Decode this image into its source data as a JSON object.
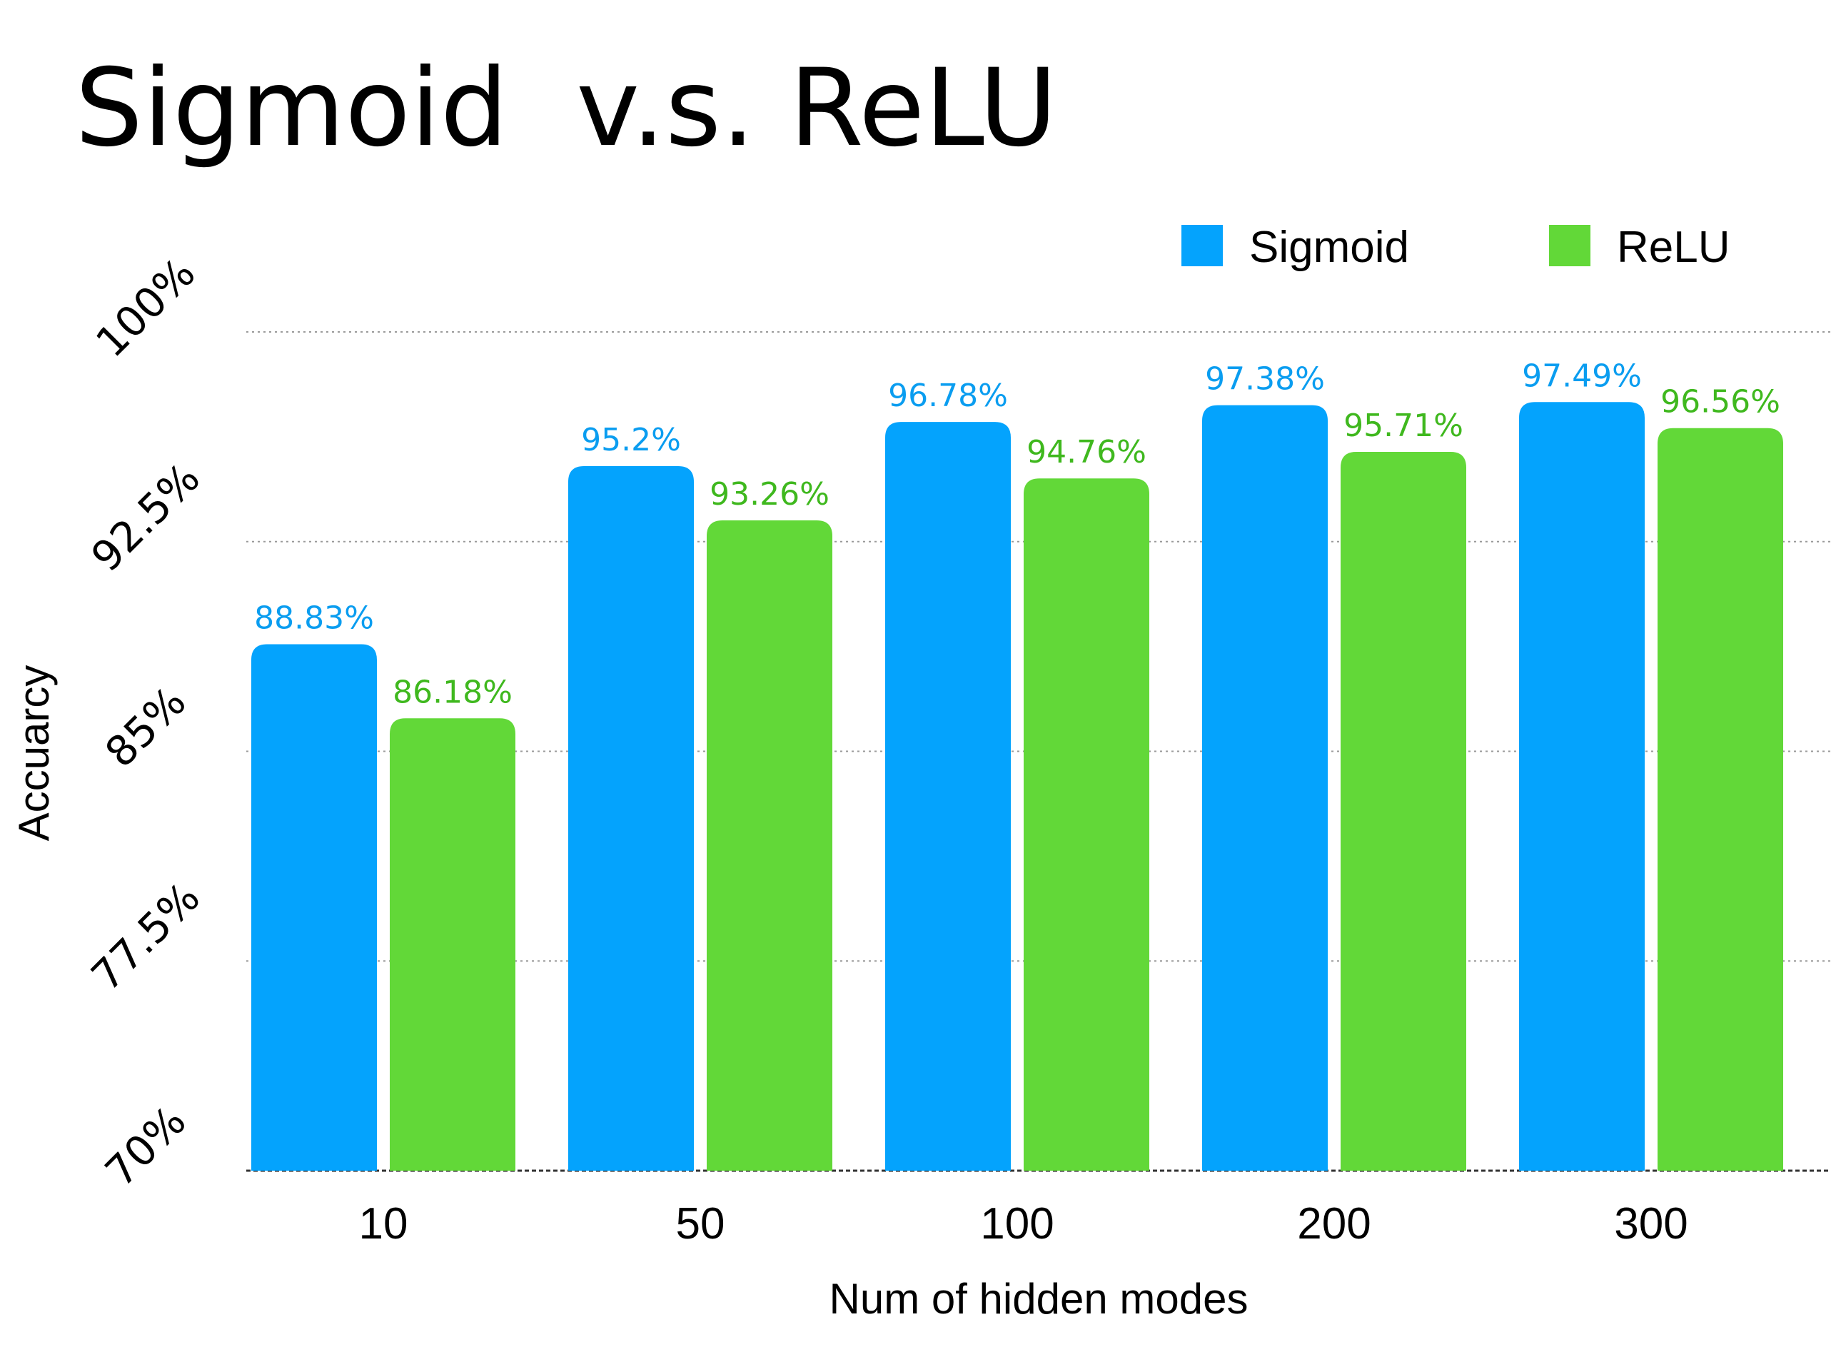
{
  "chart_data": {
    "type": "bar",
    "title": "Sigmoid  v.s. ReLU",
    "xlabel": "Num of hidden modes",
    "ylabel": "Accuarcy",
    "categories": [
      "10",
      "50",
      "100",
      "200",
      "300"
    ],
    "series": [
      {
        "name": "Sigmoid",
        "color": "#04A3FD",
        "values": [
          88.83,
          95.2,
          96.78,
          97.38,
          97.49
        ],
        "labels": [
          "88.83%",
          "95.2%",
          "96.78%",
          "97.38%",
          "97.49%"
        ]
      },
      {
        "name": "ReLU",
        "color": "#62D838",
        "values": [
          86.18,
          93.26,
          94.76,
          95.71,
          96.56
        ],
        "labels": [
          "86.18%",
          "93.26%",
          "94.76%",
          "95.71%",
          "96.56%"
        ]
      }
    ],
    "ylim": [
      70,
      100
    ],
    "yticks": [
      70,
      77.5,
      85,
      92.5,
      100
    ],
    "ytick_labels": [
      "70%",
      "77.5%",
      "85%",
      "92.5%",
      "100%"
    ],
    "grid": true,
    "legend": "top-right"
  }
}
